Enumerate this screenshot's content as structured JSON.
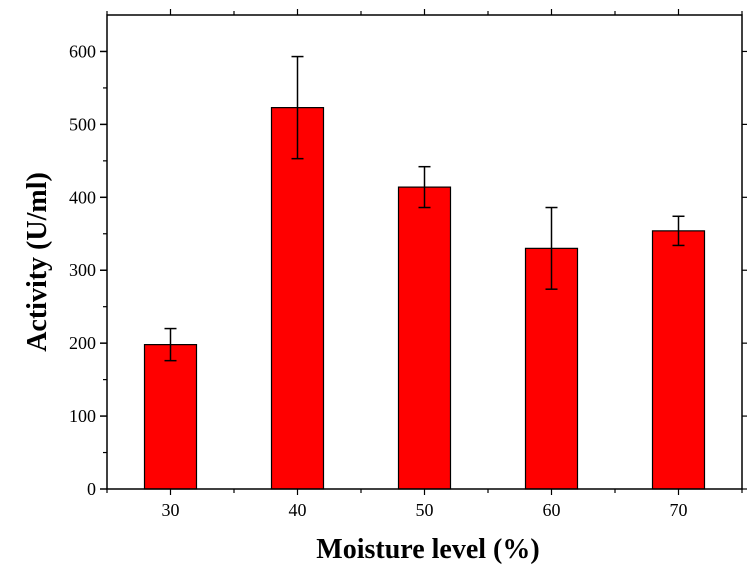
{
  "chart_data": {
    "type": "bar",
    "categories": [
      "30",
      "40",
      "50",
      "60",
      "70"
    ],
    "series": [
      {
        "values": [
          198,
          523,
          414,
          330,
          354
        ],
        "error": [
          22,
          70,
          28,
          56,
          20
        ]
      }
    ],
    "xlabel": "Moisture level (%)",
    "ylabel": "Activity (U/ml)",
    "ylim": [
      0,
      650
    ],
    "yticks": [
      0,
      100,
      200,
      300,
      400,
      500,
      600
    ],
    "bar_color": "#ff0000",
    "grid": false,
    "legend": "none"
  }
}
